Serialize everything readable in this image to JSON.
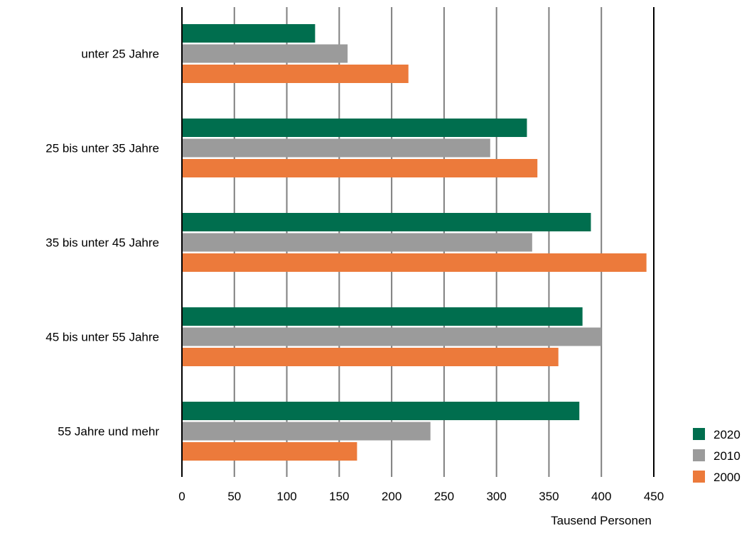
{
  "chart_data": {
    "type": "bar",
    "orientation": "horizontal",
    "categories": [
      "unter 25 Jahre",
      "25 bis unter 35 Jahre",
      "35 bis unter 45 Jahre",
      "45 bis unter 55 Jahre",
      "55 Jahre und mehr"
    ],
    "series": [
      {
        "name": "2020",
        "color": "#006E4E",
        "values": [
          127,
          329,
          390,
          382,
          379
        ]
      },
      {
        "name": "2010",
        "color": "#9B9B9B",
        "values": [
          158,
          294,
          334,
          400,
          237
        ]
      },
      {
        "name": "2000",
        "color": "#EC7A3B",
        "values": [
          216,
          339,
          443,
          359,
          167
        ]
      }
    ],
    "xlim": [
      0,
      450
    ],
    "xticks": [
      "0",
      "50",
      "100",
      "150",
      "200",
      "250",
      "300",
      "350",
      "400",
      "450"
    ],
    "xlabel": "Tausend Personen",
    "ylabel": "",
    "title": "",
    "grid": "vertical",
    "legend": "bottom-right"
  }
}
